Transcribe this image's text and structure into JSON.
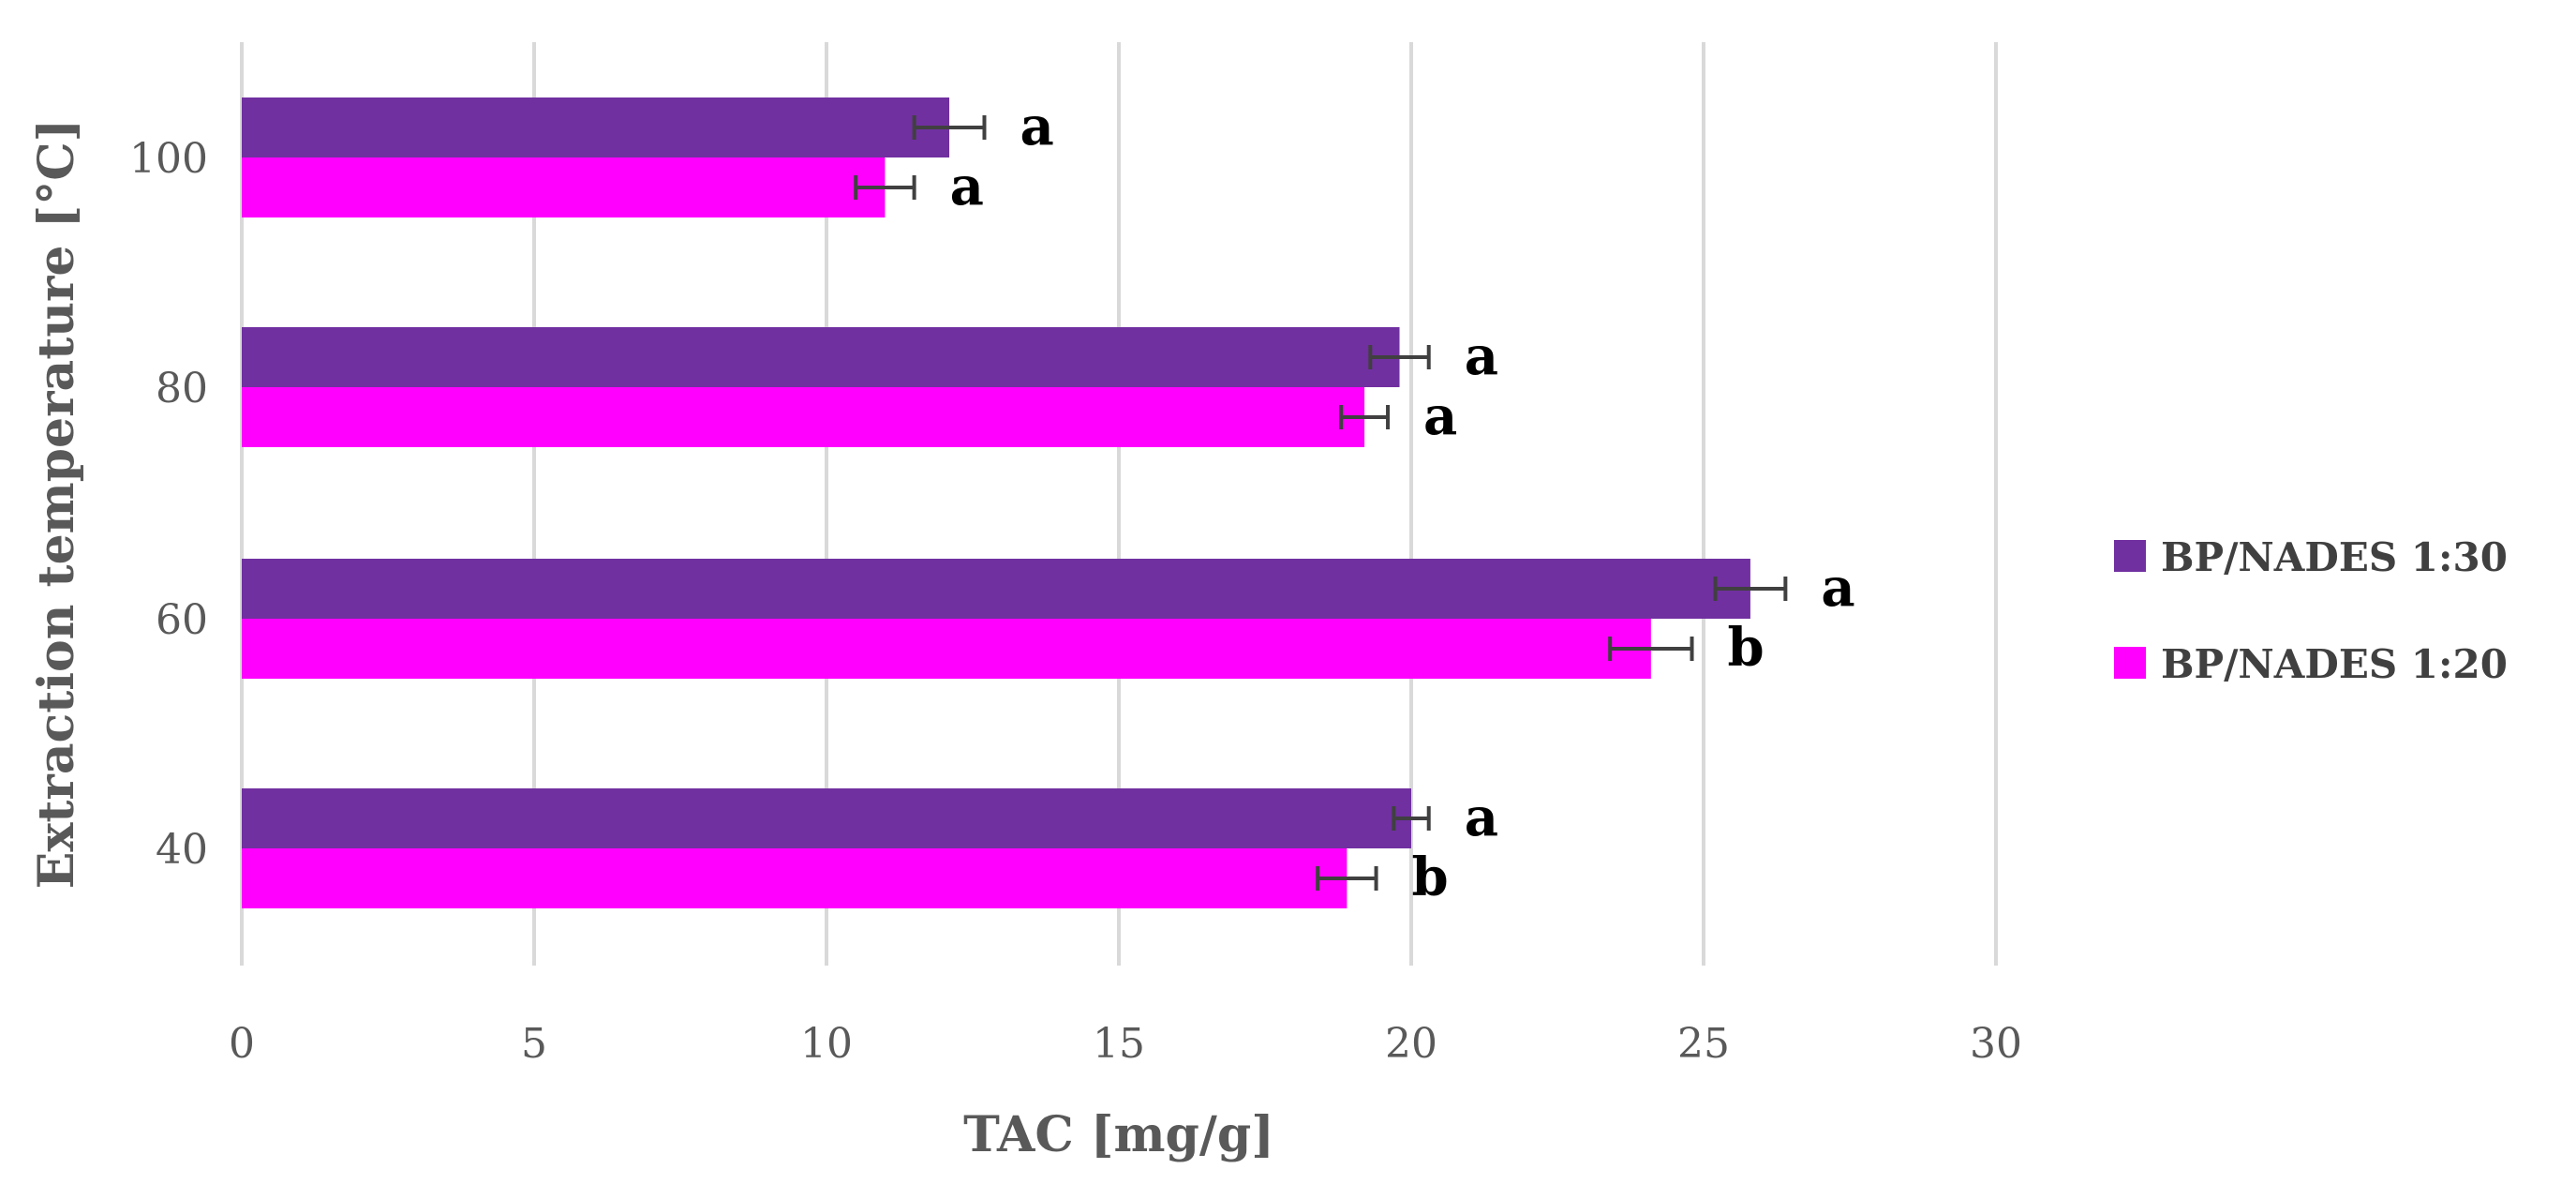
{
  "chart_data": {
    "type": "bar",
    "orientation": "horizontal",
    "title": "",
    "xlabel": "TAC [mg/g]",
    "ylabel": "Extraction temperature [°C]",
    "xlim": [
      0,
      30
    ],
    "xticks": [
      0,
      5,
      10,
      15,
      20,
      25,
      30
    ],
    "grid": true,
    "legend_position": "right",
    "categories": [
      "40",
      "60",
      "80",
      "100"
    ],
    "series": [
      {
        "name": "BP/NADES 1:30",
        "color": "#7030a0",
        "values": [
          20.0,
          25.8,
          19.8,
          12.1
        ],
        "errors": [
          0.3,
          0.6,
          0.5,
          0.6
        ],
        "labels": [
          "a",
          "a",
          "a",
          "a"
        ]
      },
      {
        "name": "BP/NADES 1:20",
        "color": "#ff00ff",
        "values": [
          18.9,
          24.1,
          19.2,
          11.0
        ],
        "errors": [
          0.5,
          0.7,
          0.4,
          0.5
        ],
        "labels": [
          "b",
          "b",
          "a",
          "a"
        ]
      }
    ]
  }
}
